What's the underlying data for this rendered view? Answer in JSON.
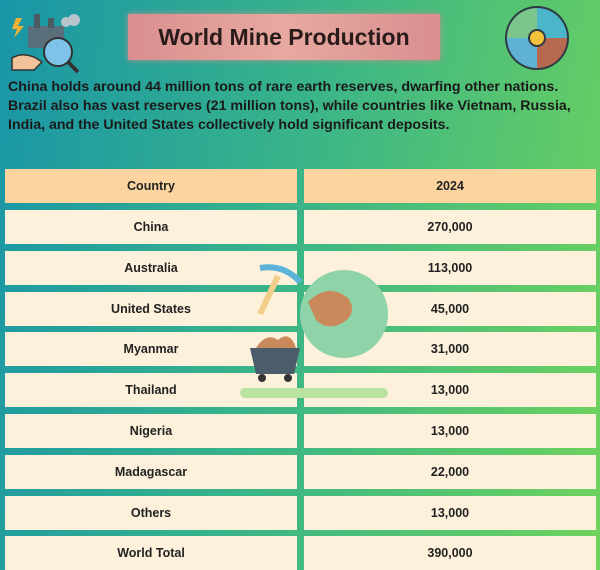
{
  "header": {
    "title": "World Mine Production",
    "description": "China holds around 44 million tons of rare earth reserves, dwarfing other nations. Brazil also has vast reserves (21 million tons), while countries like Vietnam, Russia, India, and the United States collectively hold significant deposits."
  },
  "table": {
    "columns": [
      "Country",
      "2024"
    ],
    "rows": [
      [
        "China",
        "270,000"
      ],
      [
        "Australia",
        "113,000"
      ],
      [
        "United States",
        "45,000"
      ],
      [
        "Myanmar",
        "31,000"
      ],
      [
        "Thailand",
        "13,000"
      ],
      [
        "Nigeria",
        "13,000"
      ],
      [
        "Madagascar",
        "22,000"
      ],
      [
        "Others",
        "13,000"
      ],
      [
        "World Total",
        "390,000"
      ]
    ]
  }
}
